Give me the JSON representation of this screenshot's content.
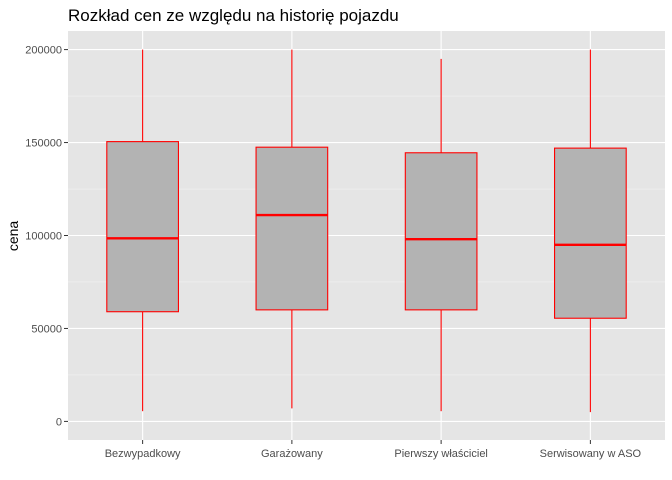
{
  "chart_data": {
    "type": "boxplot",
    "title": "Rozkład cen ze względu na historię pojazdu",
    "xlabel": "",
    "ylabel": "cena",
    "categories": [
      "Bezwypadkowy",
      "Garażowany",
      "Pierwszy właściciel",
      "Serwisowany w ASO"
    ],
    "boxes": [
      {
        "category": "Bezwypadkowy",
        "min": 5500,
        "q1": 59000,
        "median": 98500,
        "q3": 150500,
        "max": 200000
      },
      {
        "category": "Garażowany",
        "min": 7000,
        "q1": 60000,
        "median": 111000,
        "q3": 147500,
        "max": 200000
      },
      {
        "category": "Pierwszy właściciel",
        "min": 5500,
        "q1": 60000,
        "median": 98000,
        "q3": 144500,
        "max": 195000
      },
      {
        "category": "Serwisowany w ASO",
        "min": 5000,
        "q1": 55500,
        "median": 95000,
        "q3": 147000,
        "max": 200000
      }
    ],
    "yticks": [
      0,
      50000,
      100000,
      150000,
      200000
    ],
    "ytick_labels": [
      "0",
      "50000",
      "100000",
      "150000",
      "200000"
    ],
    "ylim": [
      -10000,
      210000
    ],
    "grid": true,
    "colors": {
      "panel_background": "#e5e5e5",
      "grid_major": "#ffffff",
      "grid_minor": "#f2f2f2",
      "box_fill": "#b3b3b3",
      "box_outline": "#ff0000"
    }
  }
}
